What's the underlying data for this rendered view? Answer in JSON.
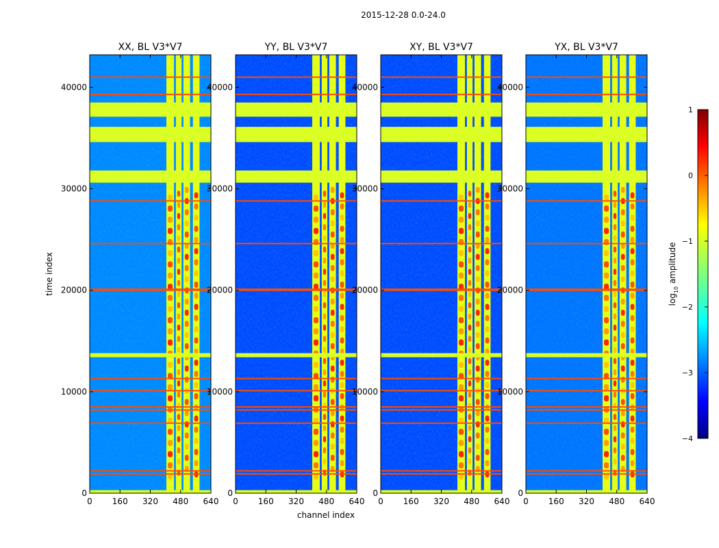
{
  "chart_data": {
    "type": "heatmap",
    "title": "2015-12-28 0.0-24.0",
    "xlabel": "channel index",
    "ylabel": "time index",
    "xlim": [
      0,
      640
    ],
    "ylim": [
      0,
      43200
    ],
    "x_ticks": [
      "0",
      "160",
      "320",
      "480",
      "640"
    ],
    "x_tick_values": [
      0,
      160,
      320,
      480,
      640
    ],
    "y_ticks": [
      "0",
      "10000",
      "20000",
      "30000",
      "40000"
    ],
    "y_tick_values": [
      0,
      10000,
      20000,
      30000,
      40000
    ],
    "panels": [
      {
        "title": "XX, BL V3*V7",
        "background_level": -2.7
      },
      {
        "title": "YY, BL V3*V7",
        "background_level": -3.0
      },
      {
        "title": "XY, BL V3*V7",
        "background_level": -3.0
      },
      {
        "title": "YX, BL V3*V7",
        "background_level": -2.8
      }
    ],
    "flagged_time_bands": [
      [
        30600,
        31800
      ],
      [
        34600,
        36100
      ],
      [
        37100,
        38500
      ],
      [
        13400,
        13800
      ],
      [
        0,
        300
      ]
    ],
    "flagged_channel_bands": [
      [
        405,
        445
      ],
      [
        455,
        485
      ],
      [
        495,
        530
      ],
      [
        545,
        580
      ]
    ],
    "rfi_time_lines": [
      41000,
      39300,
      28800,
      24600,
      20100,
      20000,
      11300,
      10100,
      8500,
      8200,
      6900,
      2200,
      1900
    ],
    "colorbar": {
      "label_prefix": "log",
      "label_sub": "10",
      "label_suffix": " amplitude",
      "range": [
        -4,
        1
      ],
      "ticks": [
        "1",
        "0",
        "−1",
        "−2",
        "−3",
        "−4"
      ],
      "tick_values": [
        1,
        0,
        -1,
        -2,
        -3,
        -4
      ]
    }
  }
}
